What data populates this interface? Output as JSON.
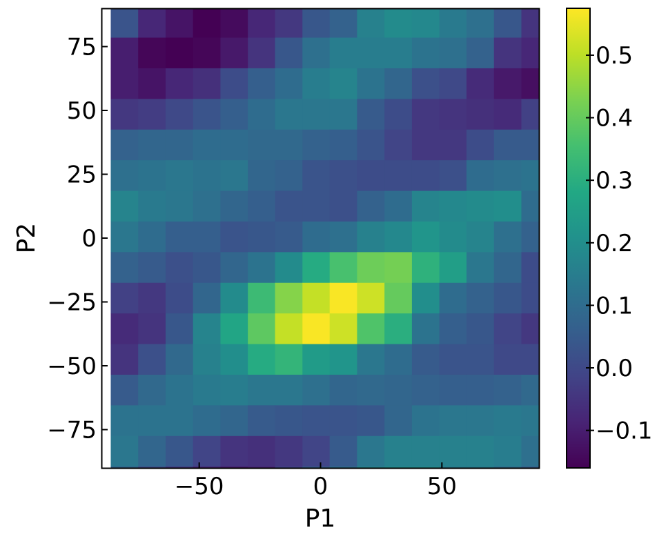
{
  "chart_data": {
    "type": "heatmap",
    "title": "",
    "xlabel": "P1",
    "ylabel": "P2",
    "xlim": [
      -90,
      90
    ],
    "ylim": [
      -90,
      90
    ],
    "x_ticks": [
      -50,
      0,
      50
    ],
    "y_ticks": [
      -75,
      -50,
      -25,
      0,
      25,
      50,
      75
    ],
    "x_tick_labels": [
      "−50",
      "0",
      "50"
    ],
    "y_tick_labels": [
      "−75",
      "−50",
      "−25",
      "0",
      "25",
      "50",
      "75"
    ],
    "colorbar": {
      "range": [
        -0.16,
        0.575
      ],
      "ticks": [
        -0.1,
        0.0,
        0.1,
        0.2,
        0.3,
        0.4,
        0.5
      ],
      "tick_labels": [
        "−0.1",
        "0.0",
        "0.1",
        "0.2",
        "0.3",
        "0.4",
        "0.5"
      ],
      "colormap": "viridis"
    },
    "grid": false,
    "x_bin_centers": [
      -80.8,
      -69.5,
      -58.2,
      -46.9,
      -35.6,
      -24.3,
      -13.1,
      -1.8,
      9.4,
      20.7,
      32.0,
      43.3,
      54.6,
      65.8,
      77.1,
      88.4
    ],
    "y_bin_centers": [
      84.5,
      72.5,
      60.5,
      48.5,
      36.5,
      24.5,
      12.5,
      0.5,
      -11.5,
      -23.5,
      -35.5,
      -47.5,
      -59.5,
      -71.5,
      -83.5,
      -95.5
    ],
    "values": [
      [
        0.03,
        -0.08,
        -0.12,
        -0.16,
        -0.14,
        -0.08,
        -0.04,
        0.04,
        0.07,
        0.16,
        0.19,
        0.18,
        0.14,
        0.11,
        0.04,
        -0.05
      ],
      [
        -0.1,
        -0.15,
        -0.16,
        -0.15,
        -0.11,
        -0.05,
        0.04,
        0.11,
        0.15,
        0.15,
        0.15,
        0.12,
        0.11,
        0.07,
        -0.05,
        -0.08
      ],
      [
        -0.1,
        -0.12,
        -0.08,
        -0.06,
        0.01,
        0.06,
        0.1,
        0.15,
        0.17,
        0.12,
        0.08,
        0.02,
        0.0,
        -0.07,
        -0.11,
        -0.13
      ],
      [
        -0.04,
        -0.03,
        0.0,
        0.03,
        0.06,
        0.1,
        0.13,
        0.13,
        0.13,
        0.05,
        0.01,
        -0.04,
        -0.05,
        -0.06,
        -0.07,
        -0.02
      ],
      [
        0.07,
        0.08,
        0.08,
        0.1,
        0.1,
        0.09,
        0.09,
        0.07,
        0.06,
        0.03,
        -0.01,
        -0.04,
        -0.04,
        0.01,
        0.05,
        0.05
      ],
      [
        0.11,
        0.12,
        0.13,
        0.12,
        0.13,
        0.08,
        0.07,
        0.03,
        0.02,
        0.01,
        0.01,
        0.01,
        0.02,
        0.1,
        0.11,
        0.12
      ],
      [
        0.17,
        0.14,
        0.13,
        0.11,
        0.08,
        0.06,
        0.03,
        0.03,
        0.02,
        0.07,
        0.1,
        0.17,
        0.18,
        0.19,
        0.2,
        0.1
      ],
      [
        0.13,
        0.1,
        0.06,
        0.06,
        0.03,
        0.04,
        0.05,
        0.1,
        0.11,
        0.16,
        0.18,
        0.22,
        0.19,
        0.17,
        0.11,
        0.07
      ],
      [
        0.07,
        0.05,
        0.02,
        0.04,
        0.08,
        0.12,
        0.19,
        0.29,
        0.36,
        0.41,
        0.42,
        0.31,
        0.25,
        0.13,
        0.08,
        0.01
      ],
      [
        -0.02,
        -0.04,
        0.01,
        0.08,
        0.19,
        0.34,
        0.44,
        0.51,
        0.57,
        0.52,
        0.4,
        0.2,
        0.1,
        0.07,
        0.04,
        0.01
      ],
      [
        -0.07,
        -0.05,
        0.04,
        0.17,
        0.27,
        0.39,
        0.51,
        0.57,
        0.52,
        0.37,
        0.3,
        0.12,
        0.06,
        0.04,
        -0.01,
        -0.04
      ],
      [
        -0.05,
        0.02,
        0.09,
        0.16,
        0.2,
        0.29,
        0.32,
        0.24,
        0.22,
        0.13,
        0.1,
        0.05,
        0.03,
        0.03,
        0.0,
        0.0
      ],
      [
        0.05,
        0.09,
        0.12,
        0.14,
        0.15,
        0.13,
        0.13,
        0.11,
        0.08,
        0.09,
        0.08,
        0.07,
        0.06,
        0.06,
        0.07,
        0.09
      ],
      [
        0.12,
        0.12,
        0.12,
        0.1,
        0.08,
        0.05,
        0.04,
        0.03,
        0.03,
        0.04,
        0.08,
        0.12,
        0.13,
        0.13,
        0.14,
        0.13
      ],
      [
        0.13,
        0.08,
        0.04,
        -0.01,
        -0.05,
        -0.06,
        -0.04,
        -0.01,
        0.05,
        0.13,
        0.16,
        0.16,
        0.16,
        0.16,
        0.15,
        0.11
      ],
      [
        0.07,
        0.0,
        -0.05,
        -0.09,
        -0.11,
        -0.09,
        -0.01,
        0.06,
        0.11,
        0.17,
        0.19,
        0.19,
        0.15,
        0.15,
        0.1,
        0.05
      ]
    ]
  }
}
